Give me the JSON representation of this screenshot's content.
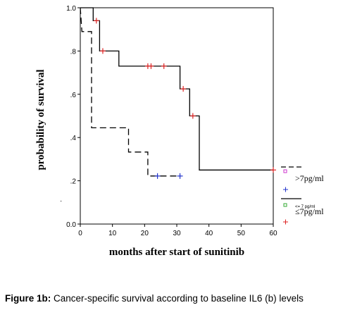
{
  "chart_data": {
    "type": "line",
    "subtype": "kaplan-meier step survival curve",
    "xlabel": "months after start of sunitinib",
    "ylabel": "probability of survival",
    "xlim": [
      0,
      60
    ],
    "ylim": [
      0,
      1
    ],
    "x_ticks": [
      "0",
      "10",
      "20",
      "30",
      "40",
      "50",
      "60"
    ],
    "y_ticks": [
      "0.0",
      ".2",
      ".4",
      ".6",
      ".8",
      "1.0"
    ],
    "grid": false,
    "legend_position": "right",
    "series": [
      {
        "name": ">7pg/ml",
        "line_style": "dashed",
        "line_color": "#000000",
        "censor_color": "#2233cc",
        "steps": [
          [
            0,
            1.0
          ],
          [
            0.5,
            0.89
          ],
          [
            3.5,
            0.89
          ],
          [
            3.5,
            0.445
          ],
          [
            15,
            0.445
          ],
          [
            15,
            0.333
          ],
          [
            21,
            0.333
          ],
          [
            21,
            0.222
          ],
          [
            31,
            0.222
          ]
        ],
        "censored": [
          [
            24,
            0.222
          ],
          [
            31,
            0.222
          ]
        ]
      },
      {
        "name": "≤7pg/ml",
        "line_style": "solid",
        "line_color": "#000000",
        "censor_color": "#dd2222",
        "steps": [
          [
            0,
            1.0
          ],
          [
            4,
            1.0
          ],
          [
            4,
            0.94
          ],
          [
            6,
            0.94
          ],
          [
            6,
            0.8
          ],
          [
            12,
            0.8
          ],
          [
            12,
            0.73
          ],
          [
            31,
            0.73
          ],
          [
            31,
            0.625
          ],
          [
            34,
            0.625
          ],
          [
            34,
            0.5
          ],
          [
            37,
            0.5
          ],
          [
            37,
            0.25
          ],
          [
            60,
            0.25
          ]
        ],
        "censored": [
          [
            5,
            0.94
          ],
          [
            7,
            0.8
          ],
          [
            21,
            0.73
          ],
          [
            22,
            0.73
          ],
          [
            26,
            0.73
          ],
          [
            32,
            0.625
          ],
          [
            35,
            0.5
          ],
          [
            60,
            0.25
          ]
        ]
      }
    ]
  },
  "legend": {
    "group1_label": ">7pg/ml",
    "group2_small_label": "<= 7 pg/ml",
    "group2_label": "≤7pg/ml"
  },
  "caption": {
    "prefix": "Figure 1b:",
    "text": " Cancer-specific survival according to baseline IL6 (b) levels"
  }
}
